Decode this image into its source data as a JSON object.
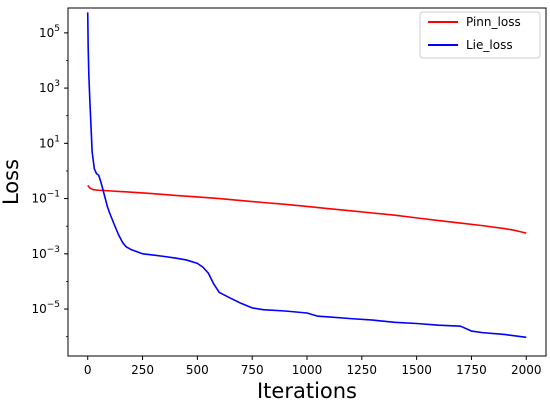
{
  "chart_data": {
    "type": "line",
    "title": "",
    "xlabel": "Iterations",
    "ylabel": "Loss",
    "xlim": [
      -90,
      2090
    ],
    "ylim_log10": [
      -6.7,
      5.9
    ],
    "yscale": "log",
    "grid": false,
    "legend_position": "top-right",
    "x_ticks": [
      0,
      250,
      500,
      750,
      1000,
      1250,
      1500,
      1750,
      2000
    ],
    "x_tick_labels": [
      "0",
      "250",
      "500",
      "750",
      "1000",
      "1250",
      "1500",
      "1750",
      "2000"
    ],
    "y_ticks": [
      {
        "value": 100000,
        "base": "10",
        "exp": "5"
      },
      {
        "value": 1000,
        "base": "10",
        "exp": "3"
      },
      {
        "value": 10,
        "base": "10",
        "exp": "1"
      },
      {
        "value": 0.1,
        "base": "10",
        "exp": "−1"
      },
      {
        "value": 0.001,
        "base": "10",
        "exp": "−3"
      },
      {
        "value": 1e-05,
        "base": "10",
        "exp": "−5"
      }
    ],
    "series": [
      {
        "name": "Pinn_loss",
        "color": "#ff0000",
        "x": [
          0,
          10,
          25,
          50,
          75,
          100,
          150,
          200,
          250,
          300,
          400,
          500,
          600,
          700,
          800,
          900,
          1000,
          1100,
          1200,
          1300,
          1400,
          1500,
          1600,
          1700,
          1800,
          1900,
          1950,
          2000
        ],
        "y": [
          0.3,
          0.24,
          0.21,
          0.2,
          0.195,
          0.19,
          0.18,
          0.17,
          0.16,
          0.15,
          0.13,
          0.115,
          0.1,
          0.085,
          0.072,
          0.062,
          0.052,
          0.043,
          0.036,
          0.03,
          0.025,
          0.02,
          0.016,
          0.013,
          0.0105,
          0.0082,
          0.007,
          0.0056
        ]
      },
      {
        "name": "Lie_loss",
        "color": "#0000ff",
        "x": [
          0,
          2,
          5,
          10,
          15,
          20,
          30,
          40,
          50,
          60,
          70,
          80,
          90,
          100,
          120,
          140,
          160,
          175,
          200,
          250,
          300,
          350,
          400,
          450,
          500,
          525,
          550,
          575,
          600,
          650,
          700,
          750,
          800,
          900,
          1000,
          1050,
          1100,
          1200,
          1300,
          1400,
          1500,
          1600,
          1700,
          1750,
          1800,
          1900,
          2000
        ],
        "y": [
          550000,
          30000,
          3000,
          300,
          40,
          5,
          1.2,
          0.8,
          0.7,
          0.4,
          0.2,
          0.1,
          0.05,
          0.03,
          0.012,
          0.005,
          0.0025,
          0.0018,
          0.0014,
          0.001,
          0.0009,
          0.0008,
          0.0007,
          0.0006,
          0.00045,
          0.00033,
          0.0002,
          8e-05,
          4e-05,
          2.5e-05,
          1.6e-05,
          1.1e-05,
          9.5e-06,
          8.5e-06,
          7.2e-06,
          5.5e-06,
          5.2e-06,
          4.5e-06,
          4e-06,
          3.3e-06,
          3e-06,
          2.6e-06,
          2.4e-06,
          1.6e-06,
          1.4e-06,
          1.2e-06,
          9.5e-07
        ]
      }
    ]
  }
}
